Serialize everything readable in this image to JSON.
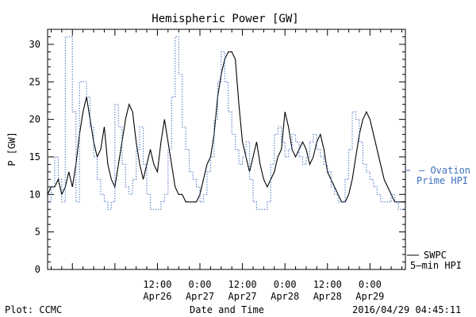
{
  "chart_data": {
    "type": "line",
    "title": "Hemispheric Power [GW]",
    "xlabel": "Date and Time",
    "ylabel": "P [GW]",
    "ylim": [
      0,
      32
    ],
    "xlim": [
      "2016-04-25T05:00",
      "2016-04-29T10:00"
    ],
    "y_ticks": [
      0,
      5,
      10,
      15,
      20,
      25,
      30
    ],
    "x_ticks": [
      {
        "x": "2016-04-26T12:00",
        "time": "12:00",
        "date": "Apr26"
      },
      {
        "x": "2016-04-27T00:00",
        "time": "0:00",
        "date": "Apr27"
      },
      {
        "x": "2016-04-27T12:00",
        "time": "12:00",
        "date": "Apr27"
      },
      {
        "x": "2016-04-28T00:00",
        "time": "0:00",
        "date": "Apr28"
      },
      {
        "x": "2016-04-28T12:00",
        "time": "12:00",
        "date": "Apr28"
      },
      {
        "x": "2016-04-29T00:00",
        "time": "0:00",
        "date": "Apr29"
      }
    ],
    "grid": false,
    "series": [
      {
        "name": "SWPC 5-min HPI",
        "color": "#000000",
        "style": "solid",
        "points": [
          [
            "2016-04-25T05:00",
            10
          ],
          [
            "2016-04-25T06:00",
            11
          ],
          [
            "2016-04-25T07:00",
            11
          ],
          [
            "2016-04-25T08:00",
            12
          ],
          [
            "2016-04-25T09:00",
            10
          ],
          [
            "2016-04-25T10:00",
            11
          ],
          [
            "2016-04-25T11:00",
            13
          ],
          [
            "2016-04-25T12:00",
            11
          ],
          [
            "2016-04-25T13:00",
            14
          ],
          [
            "2016-04-25T14:00",
            18
          ],
          [
            "2016-04-25T15:00",
            21
          ],
          [
            "2016-04-25T16:00",
            23
          ],
          [
            "2016-04-25T17:00",
            20
          ],
          [
            "2016-04-25T18:00",
            17
          ],
          [
            "2016-04-25T19:00",
            15
          ],
          [
            "2016-04-25T20:00",
            16
          ],
          [
            "2016-04-25T21:00",
            19
          ],
          [
            "2016-04-25T22:00",
            14
          ],
          [
            "2016-04-25T23:00",
            12
          ],
          [
            "2016-04-26T00:00",
            11
          ],
          [
            "2016-04-26T01:00",
            14
          ],
          [
            "2016-04-26T02:00",
            17
          ],
          [
            "2016-04-26T03:00",
            20
          ],
          [
            "2016-04-26T04:00",
            22
          ],
          [
            "2016-04-26T05:00",
            21
          ],
          [
            "2016-04-26T06:00",
            17
          ],
          [
            "2016-04-26T07:00",
            14
          ],
          [
            "2016-04-26T08:00",
            12
          ],
          [
            "2016-04-26T09:00",
            14
          ],
          [
            "2016-04-26T10:00",
            16
          ],
          [
            "2016-04-26T11:00",
            14
          ],
          [
            "2016-04-26T12:00",
            13
          ],
          [
            "2016-04-26T13:00",
            17
          ],
          [
            "2016-04-26T14:00",
            20
          ],
          [
            "2016-04-26T15:00",
            17
          ],
          [
            "2016-04-26T16:00",
            14
          ],
          [
            "2016-04-26T17:00",
            11
          ],
          [
            "2016-04-26T18:00",
            10
          ],
          [
            "2016-04-26T19:00",
            10
          ],
          [
            "2016-04-26T20:00",
            9
          ],
          [
            "2016-04-26T21:00",
            9
          ],
          [
            "2016-04-26T22:00",
            9
          ],
          [
            "2016-04-26T23:00",
            9
          ],
          [
            "2016-04-27T00:00",
            10
          ],
          [
            "2016-04-27T01:00",
            12
          ],
          [
            "2016-04-27T02:00",
            14
          ],
          [
            "2016-04-27T03:00",
            15
          ],
          [
            "2016-04-27T04:00",
            18
          ],
          [
            "2016-04-27T05:00",
            23
          ],
          [
            "2016-04-27T06:00",
            26
          ],
          [
            "2016-04-27T07:00",
            28
          ],
          [
            "2016-04-27T08:00",
            29
          ],
          [
            "2016-04-27T09:00",
            29
          ],
          [
            "2016-04-27T10:00",
            28
          ],
          [
            "2016-04-27T11:00",
            22
          ],
          [
            "2016-04-27T12:00",
            17
          ],
          [
            "2016-04-27T13:00",
            15
          ],
          [
            "2016-04-27T14:00",
            13
          ],
          [
            "2016-04-27T15:00",
            15
          ],
          [
            "2016-04-27T16:00",
            17
          ],
          [
            "2016-04-27T17:00",
            14
          ],
          [
            "2016-04-27T18:00",
            12
          ],
          [
            "2016-04-27T19:00",
            11
          ],
          [
            "2016-04-27T20:00",
            12
          ],
          [
            "2016-04-27T21:00",
            13
          ],
          [
            "2016-04-27T22:00",
            15
          ],
          [
            "2016-04-27T23:00",
            16
          ],
          [
            "2016-04-28T00:00",
            21
          ],
          [
            "2016-04-28T01:00",
            19
          ],
          [
            "2016-04-28T02:00",
            16
          ],
          [
            "2016-04-28T03:00",
            15
          ],
          [
            "2016-04-28T04:00",
            16
          ],
          [
            "2016-04-28T05:00",
            17
          ],
          [
            "2016-04-28T06:00",
            16
          ],
          [
            "2016-04-28T07:00",
            14
          ],
          [
            "2016-04-28T08:00",
            15
          ],
          [
            "2016-04-28T09:00",
            17
          ],
          [
            "2016-04-28T10:00",
            18
          ],
          [
            "2016-04-28T11:00",
            16
          ],
          [
            "2016-04-28T12:00",
            13
          ],
          [
            "2016-04-28T13:00",
            12
          ],
          [
            "2016-04-28T14:00",
            11
          ],
          [
            "2016-04-28T15:00",
            10
          ],
          [
            "2016-04-28T16:00",
            9
          ],
          [
            "2016-04-28T17:00",
            9
          ],
          [
            "2016-04-28T18:00",
            10
          ],
          [
            "2016-04-28T19:00",
            12
          ],
          [
            "2016-04-28T20:00",
            15
          ],
          [
            "2016-04-28T21:00",
            18
          ],
          [
            "2016-04-28T22:00",
            20
          ],
          [
            "2016-04-28T23:00",
            21
          ],
          [
            "2016-04-29T00:00",
            20
          ],
          [
            "2016-04-29T01:00",
            18
          ],
          [
            "2016-04-29T02:00",
            16
          ],
          [
            "2016-04-29T03:00",
            14
          ],
          [
            "2016-04-29T04:00",
            12
          ],
          [
            "2016-04-29T05:00",
            11
          ],
          [
            "2016-04-29T06:00",
            10
          ],
          [
            "2016-04-29T07:00",
            9
          ],
          [
            "2016-04-29T08:00",
            9
          ],
          [
            "2016-04-29T09:00",
            9
          ],
          [
            "2016-04-29T10:00",
            9
          ]
        ]
      },
      {
        "name": "– Ovation Prime HPI",
        "color": "#3f6fbf",
        "style": "dotted-step",
        "points": [
          [
            "2016-04-25T05:00",
            9
          ],
          [
            "2016-04-25T06:00",
            11
          ],
          [
            "2016-04-25T07:00",
            15
          ],
          [
            "2016-04-25T08:00",
            12
          ],
          [
            "2016-04-25T09:00",
            9
          ],
          [
            "2016-04-25T10:00",
            31
          ],
          [
            "2016-04-25T11:00",
            31
          ],
          [
            "2016-04-25T12:00",
            21
          ],
          [
            "2016-04-25T13:00",
            9
          ],
          [
            "2016-04-25T14:00",
            25
          ],
          [
            "2016-04-25T15:00",
            25
          ],
          [
            "2016-04-25T16:00",
            23
          ],
          [
            "2016-04-25T17:00",
            19
          ],
          [
            "2016-04-25T18:00",
            15
          ],
          [
            "2016-04-25T19:00",
            12
          ],
          [
            "2016-04-25T20:00",
            10
          ],
          [
            "2016-04-25T21:00",
            9
          ],
          [
            "2016-04-25T22:00",
            8
          ],
          [
            "2016-04-25T23:00",
            9
          ],
          [
            "2016-04-26T00:00",
            22
          ],
          [
            "2016-04-26T01:00",
            19
          ],
          [
            "2016-04-26T02:00",
            14
          ],
          [
            "2016-04-26T03:00",
            11
          ],
          [
            "2016-04-26T04:00",
            10
          ],
          [
            "2016-04-26T05:00",
            12
          ],
          [
            "2016-04-26T06:00",
            16
          ],
          [
            "2016-04-26T07:00",
            19
          ],
          [
            "2016-04-26T08:00",
            14
          ],
          [
            "2016-04-26T09:00",
            10
          ],
          [
            "2016-04-26T10:00",
            8
          ],
          [
            "2016-04-26T11:00",
            8
          ],
          [
            "2016-04-26T12:00",
            8
          ],
          [
            "2016-04-26T13:00",
            9
          ],
          [
            "2016-04-26T14:00",
            10
          ],
          [
            "2016-04-26T15:00",
            16
          ],
          [
            "2016-04-26T16:00",
            23
          ],
          [
            "2016-04-26T17:00",
            31
          ],
          [
            "2016-04-26T18:00",
            26
          ],
          [
            "2016-04-26T19:00",
            19
          ],
          [
            "2016-04-26T20:00",
            16
          ],
          [
            "2016-04-26T21:00",
            13
          ],
          [
            "2016-04-26T22:00",
            12
          ],
          [
            "2016-04-26T23:00",
            11
          ],
          [
            "2016-04-27T00:00",
            9
          ],
          [
            "2016-04-27T01:00",
            10
          ],
          [
            "2016-04-27T02:00",
            13
          ],
          [
            "2016-04-27T03:00",
            15
          ],
          [
            "2016-04-27T04:00",
            20
          ],
          [
            "2016-04-27T05:00",
            25
          ],
          [
            "2016-04-27T06:00",
            29
          ],
          [
            "2016-04-27T07:00",
            25
          ],
          [
            "2016-04-27T08:00",
            21
          ],
          [
            "2016-04-27T09:00",
            18
          ],
          [
            "2016-04-27T10:00",
            16
          ],
          [
            "2016-04-27T11:00",
            14
          ],
          [
            "2016-04-27T12:00",
            15
          ],
          [
            "2016-04-27T13:00",
            17
          ],
          [
            "2016-04-27T14:00",
            12
          ],
          [
            "2016-04-27T15:00",
            9
          ],
          [
            "2016-04-27T16:00",
            8
          ],
          [
            "2016-04-27T17:00",
            8
          ],
          [
            "2016-04-27T18:00",
            8
          ],
          [
            "2016-04-27T19:00",
            9
          ],
          [
            "2016-04-27T20:00",
            14
          ],
          [
            "2016-04-27T21:00",
            18
          ],
          [
            "2016-04-27T22:00",
            19
          ],
          [
            "2016-04-27T23:00",
            17
          ],
          [
            "2016-04-28T00:00",
            15
          ],
          [
            "2016-04-28T01:00",
            16
          ],
          [
            "2016-04-28T02:00",
            18
          ],
          [
            "2016-04-28T03:00",
            17
          ],
          [
            "2016-04-28T04:00",
            15
          ],
          [
            "2016-04-28T05:00",
            14
          ],
          [
            "2016-04-28T06:00",
            15
          ],
          [
            "2016-04-28T07:00",
            17
          ],
          [
            "2016-04-28T08:00",
            18
          ],
          [
            "2016-04-28T09:00",
            16
          ],
          [
            "2016-04-28T10:00",
            15
          ],
          [
            "2016-04-28T11:00",
            14
          ],
          [
            "2016-04-28T12:00",
            13
          ],
          [
            "2016-04-28T13:00",
            11
          ],
          [
            "2016-04-28T14:00",
            10
          ],
          [
            "2016-04-28T15:00",
            9
          ],
          [
            "2016-04-28T16:00",
            9
          ],
          [
            "2016-04-28T17:00",
            12
          ],
          [
            "2016-04-28T18:00",
            16
          ],
          [
            "2016-04-28T19:00",
            21
          ],
          [
            "2016-04-28T20:00",
            20
          ],
          [
            "2016-04-28T21:00",
            17
          ],
          [
            "2016-04-28T22:00",
            14
          ],
          [
            "2016-04-28T23:00",
            13
          ],
          [
            "2016-04-29T00:00",
            12
          ],
          [
            "2016-04-29T01:00",
            11
          ],
          [
            "2016-04-29T02:00",
            10
          ],
          [
            "2016-04-29T03:00",
            9
          ],
          [
            "2016-04-29T04:00",
            9
          ],
          [
            "2016-04-29T05:00",
            9
          ],
          [
            "2016-04-29T06:00",
            10
          ],
          [
            "2016-04-29T07:00",
            9
          ],
          [
            "2016-04-29T08:00",
            8
          ],
          [
            "2016-04-29T09:00",
            8
          ],
          [
            "2016-04-29T10:00",
            8
          ]
        ]
      }
    ]
  },
  "legend": {
    "ovation_line1": "– Ovation",
    "ovation_line2": "Prime HPI",
    "swpc_line1": "SWPC",
    "swpc_line2": "5–min HPI"
  },
  "footer": {
    "credit": "Plot: CCMC",
    "timestamp": "2016/04/29 04:45:11"
  }
}
